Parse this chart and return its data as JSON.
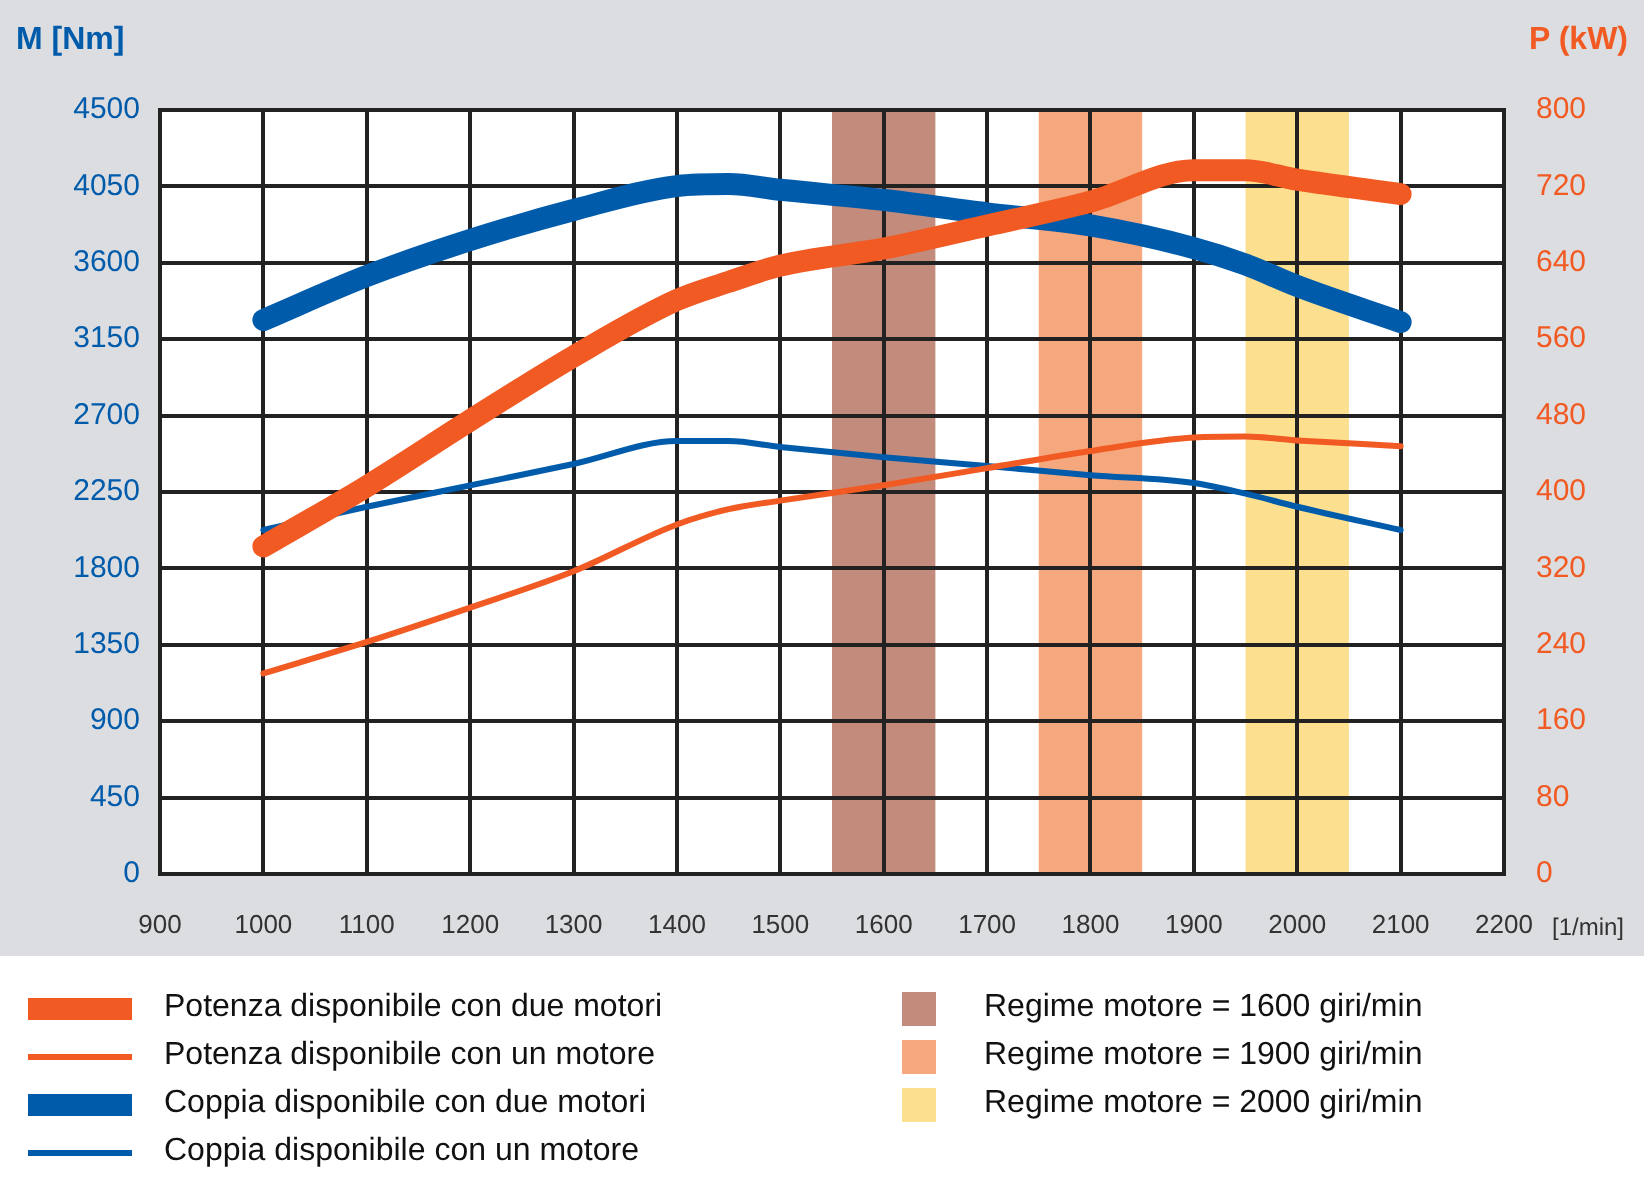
{
  "chart_data": {
    "type": "line",
    "ylabel": "M [Nm]",
    "y2label": "P (kW)",
    "xlabel": "[1/min]",
    "x": [
      1000,
      1100,
      1200,
      1300,
      1400,
      1450,
      1500,
      1600,
      1700,
      1800,
      1900,
      1950,
      2000,
      2100
    ],
    "xlim": [
      900,
      2200
    ],
    "xticks": [
      900,
      1000,
      1100,
      1200,
      1300,
      1400,
      1500,
      1600,
      1700,
      1800,
      1900,
      2000,
      2100,
      2200
    ],
    "ylim": [
      0,
      4500
    ],
    "yticks": [
      0,
      450,
      900,
      1350,
      1800,
      2250,
      2700,
      3150,
      3600,
      4050,
      4500
    ],
    "y2lim": [
      0,
      800
    ],
    "y2ticks": [
      0,
      80,
      160,
      240,
      320,
      400,
      480,
      560,
      640,
      720,
      800
    ],
    "grid": true,
    "legend": "bottom",
    "marker": "none",
    "line_style": "solid",
    "series": [
      {
        "name": "Potenza disponibile con due motori",
        "color": "#f15a22",
        "axis": "y2",
        "values": [
          343,
          406,
          475,
          542,
          601,
          620,
          637,
          655,
          679,
          704,
          737,
          737,
          727,
          712
        ]
      },
      {
        "name": "Potenza disponibile con un motore",
        "color": "#f15a22",
        "axis": "y2",
        "values": [
          210,
          243,
          279,
          317,
          366,
          382,
          391,
          407,
          425,
          443,
          457,
          458,
          454,
          448
        ]
      },
      {
        "name": "Coppia disponibile con due motori",
        "color": "#005bab",
        "values": [
          3263,
          3522,
          3734,
          3911,
          4052,
          4064,
          4030,
          3970,
          3891,
          3820,
          3687,
          3590,
          3463,
          3251
        ]
      },
      {
        "name": "Coppia disponibile con un motore",
        "color": "#005bab",
        "values": [
          2026,
          2163,
          2289,
          2415,
          2550,
          2550,
          2515,
          2455,
          2403,
          2349,
          2303,
          2240,
          2163,
          2026
        ]
      }
    ],
    "bands": [
      {
        "axis": "x",
        "from": 1550,
        "to": 1650,
        "label": "Regime motore = 1600 giri/min",
        "color": "#c38b7c"
      },
      {
        "axis": "x",
        "from": 1750,
        "to": 1850,
        "label": "Regime motore = 1900 giri/min",
        "color": "#f5a87d"
      },
      {
        "axis": "x",
        "from": 1950,
        "to": 2050,
        "label": "Regime motore = 2000 giri/min",
        "color": "#fce08f"
      }
    ]
  }
}
